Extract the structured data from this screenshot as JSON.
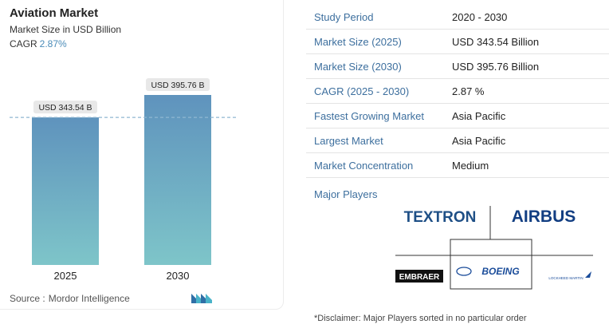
{
  "header": {
    "title": "Aviation Market",
    "subtitle": "Market Size in USD Billion",
    "cagr_label": "CAGR",
    "cagr_value": "2.87%"
  },
  "chart_data": {
    "type": "bar",
    "categories": [
      "2025",
      "2030"
    ],
    "values": [
      343.54,
      395.76
    ],
    "data_labels": [
      "USD 343.54 B",
      "USD 395.76 B"
    ],
    "title": "Aviation Market",
    "xlabel": "",
    "ylabel": "",
    "grid": false,
    "bar_gradient": [
      "#5f93bd",
      "#7ec5c9"
    ],
    "label_background": "#e8e8e8",
    "reference_line_color": "#8fb7d2"
  },
  "footer": {
    "source_label": "Source :",
    "source_value": "Mordor Intelligence",
    "logo_icon": "mordor-intelligence-logo-icon"
  },
  "table": [
    {
      "key": "Study Period",
      "value": "2020 - 2030"
    },
    {
      "key": "Market Size (2025)",
      "value": "USD 343.54 Billion"
    },
    {
      "key": "Market Size (2030)",
      "value": "USD 395.76 Billion"
    },
    {
      "key": "CAGR (2025 - 2030)",
      "value": "2.87 %"
    },
    {
      "key": "Fastest Growing Market",
      "value": "Asia Pacific"
    },
    {
      "key": "Largest Market",
      "value": "Asia Pacific"
    },
    {
      "key": "Market Concentration",
      "value": "Medium"
    }
  ],
  "players": {
    "label": "Major Players",
    "logos": [
      "TEXTRON",
      "AIRBUS",
      "EMBRAER",
      "BOEING",
      "LOCKHEED MARTIN"
    ]
  },
  "disclaimer": "*Disclaimer: Major Players sorted in no particular order",
  "colors": {
    "accent": "#3d6f9e",
    "cagr": "#4a8bb8"
  }
}
